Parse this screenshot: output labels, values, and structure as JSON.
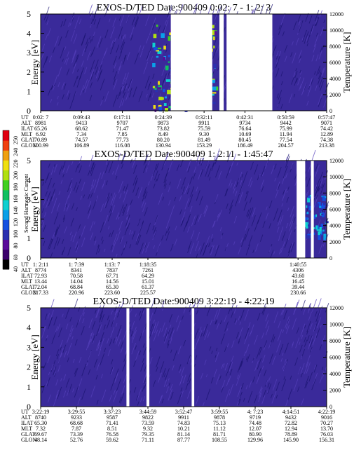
{
  "colors": {
    "background": "#3a2a9a",
    "speckle_dark": "#1b1470",
    "speckle_light": "#5540bb",
    "gap": "#ffffff"
  },
  "colorbar": {
    "label": "Second Harmonic Current",
    "ticks": [
      "40",
      "60",
      "80",
      "100",
      "120",
      "140",
      "160",
      "180",
      "200",
      "220",
      "240",
      "250"
    ],
    "colors": [
      "#000000",
      "#3a006a",
      "#5a0a9a",
      "#2a30b0",
      "#1450e0",
      "#0aa0e8",
      "#10d0d0",
      "#10c060",
      "#40d020",
      "#b0e010",
      "#f0e010",
      "#f0a010",
      "#f04010",
      "#e00010"
    ]
  },
  "chart_data": [
    {
      "type": "heatmap",
      "title": "EXOS-D/TED   Date:900409  0:02: 7 - 1: 2: 3",
      "ylabel": "Energy [eV]",
      "ylabel_right": "Temperature [K]",
      "ylim": [
        0,
        5
      ],
      "y2lim": [
        0,
        12000
      ],
      "yticks": [
        "0",
        "1",
        "2",
        "3",
        "4",
        "5"
      ],
      "y2ticks": [
        "0",
        "2000",
        "4000",
        "6000",
        "8000",
        "10000",
        "12000"
      ],
      "gaps": [
        [
          0.455,
          0.6
        ],
        [
          0.625,
          0.64
        ],
        [
          0.65,
          0.81
        ]
      ],
      "speckle_region": [
        0.39,
        0.61
      ],
      "orbit_rows": [
        "UT",
        "ALT",
        "ILAT",
        "MLT",
        "GLAT",
        "GLON"
      ],
      "orbit_cols": [
        [
          "0:02: 7",
          "8981",
          "65.26",
          "6.92",
          "70.89",
          "100.99"
        ],
        [
          "0:09:43",
          "9413",
          "68.62",
          "7.34",
          "74.57",
          "106.89"
        ],
        [
          "0:17:11",
          "9707",
          "71.47",
          "7.85",
          "77.73",
          "116.08"
        ],
        [
          "0:24:39",
          "9873",
          "73.82",
          "8.49",
          "80.20",
          "130.94"
        ],
        [
          "0:32:11",
          "9911",
          "75.59",
          "9.30",
          "81.49",
          "153.29"
        ],
        [
          "0:42:31",
          "9734",
          "76.64",
          "10.69",
          "80.45",
          "186.49"
        ],
        [
          "0:50:59",
          "9442",
          "75.99",
          "11.94",
          "77.54",
          "204.57"
        ],
        [
          "0:57:47",
          "9071",
          "74.42",
          "12.89",
          "74.38",
          "213.38"
        ]
      ]
    },
    {
      "type": "heatmap",
      "title": "EXOS-D/TED   Date:900409  1: 2:11 - 1:45:47",
      "ylabel": "Energy [eV]",
      "ylabel_right": "Temperature [K]",
      "ylim": [
        0,
        5
      ],
      "y2lim": [
        0,
        12000
      ],
      "yticks": [
        "0",
        "1",
        "2",
        "3",
        "4",
        "5"
      ],
      "y2ticks": [
        "0",
        "2000",
        "4000",
        "6000",
        "8000",
        "10000",
        "12000"
      ],
      "gaps": [
        [
          0.895,
          0.925
        ],
        [
          0.945,
          0.955
        ]
      ],
      "speckle_region": [
        0.92,
        1.0
      ],
      "orbit_rows": [
        "UT",
        "ALT",
        "ILAT",
        "MLT",
        "GLAT",
        "GLON"
      ],
      "orbit_cols": [
        [
          "1: 2:11",
          "8774",
          "72.93",
          "13.44",
          "72.04",
          "217.33"
        ],
        [
          "1: 7:39",
          "8341",
          "70.58",
          "14.04",
          "68.84",
          "220.96"
        ],
        [
          "1:13: 7",
          "7837",
          "67.71",
          "14.56",
          "65.30",
          "223.60"
        ],
        [
          "1:18:35",
          "7261",
          "64.29",
          "15.01",
          "61.37",
          "225.57"
        ],
        [
          "1:40:55",
          "4306",
          "43.60",
          "16.45",
          "39.44",
          "230.66"
        ]
      ]
    },
    {
      "type": "heatmap",
      "title": "EXOS-D/TED   Date:900409  3:22:19 - 4:22:19",
      "ylabel": "Energy [eV]",
      "ylabel_right": "Temperature [K]",
      "ylim": [
        0,
        5
      ],
      "y2lim": [
        0,
        12000
      ],
      "yticks": [
        "0",
        "1",
        "2",
        "3",
        "4",
        "5"
      ],
      "y2ticks": [
        "0",
        "2000",
        "4000",
        "6000",
        "8000",
        "10000",
        "12000"
      ],
      "gaps": [
        [
          0.3,
          0.31
        ],
        [
          0.37,
          0.38
        ],
        [
          0.528,
          0.537
        ]
      ],
      "speckle_region": null,
      "orbit_rows": [
        "UT",
        "ALT",
        "ILAT",
        "MLT",
        "GLAT",
        "GLON"
      ],
      "orbit_cols": [
        [
          "3:22:19",
          "8740",
          "65.30",
          "7.32",
          "69.67",
          "48.14"
        ],
        [
          "3:29:55",
          "9233",
          "68.68",
          "7.87",
          "73.39",
          "52.76"
        ],
        [
          "3:37:23",
          "9587",
          "71.41",
          "8.51",
          "76.58",
          "59.62"
        ],
        [
          "3:44:59",
          "9822",
          "73.59",
          "9.32",
          "79.35",
          "71.11"
        ],
        [
          "3:52:47",
          "9911",
          "74.83",
          "10.21",
          "81.14",
          "87.77"
        ],
        [
          "3:59:55",
          "9878",
          "75.13",
          "11.12",
          "81.71",
          "108.55"
        ],
        [
          "4: 7:23",
          "9719",
          "74.48",
          "12.07",
          "80.90",
          "129.96"
        ],
        [
          "4:14:51",
          "9432",
          "72.82",
          "12.94",
          "78.89",
          "145.90"
        ],
        [
          "4:22:19",
          "9016",
          "70.27",
          "13.70",
          "76.03",
          "156.31"
        ]
      ]
    }
  ]
}
